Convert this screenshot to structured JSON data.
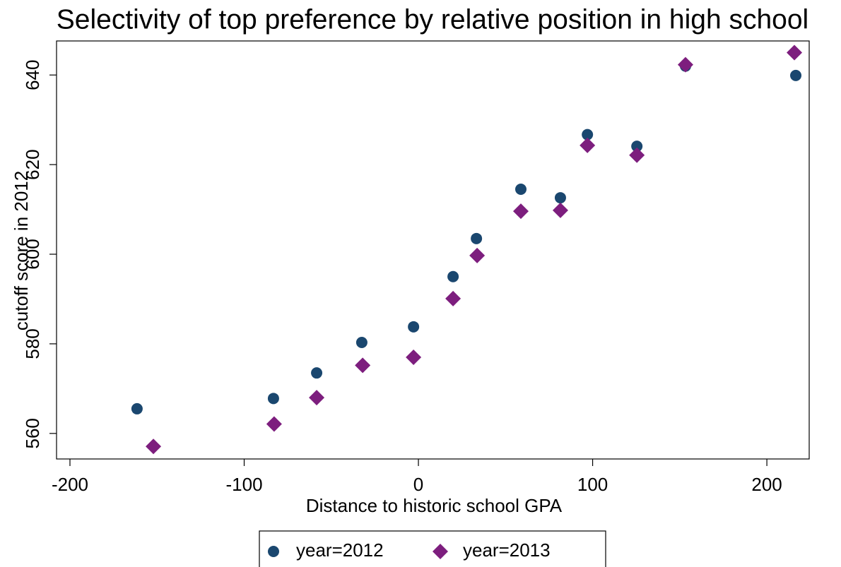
{
  "chart_data": {
    "type": "scatter",
    "title": "Selectivity of top preference by relative position in high school",
    "x_label": "Distance to historic school GPA",
    "y_label": "cutoff score in 2012",
    "xlim": [
      -207.7,
      224.3
    ],
    "ylim": [
      554.3,
      647.6
    ],
    "xticks": [
      -200,
      -100,
      0,
      100,
      200
    ],
    "yticks": [
      560,
      580,
      600,
      620,
      640
    ],
    "legend": "bottom",
    "series": [
      {
        "name": "year=2012",
        "color": "#1a476f",
        "marker": "circle",
        "x": [
          -161.5,
          -83.2,
          -58.4,
          -32.5,
          -2.8,
          19.9,
          33.3,
          58.8,
          81.5,
          97.0,
          125.4,
          153.3,
          216.6
        ],
        "values": [
          565.5,
          567.8,
          573.5,
          580.3,
          583.8,
          595.0,
          603.5,
          614.5,
          612.6,
          626.7,
          624.1,
          642.0,
          639.9
        ]
      },
      {
        "name": "year=2013",
        "color": "#7d1e7e",
        "marker": "diamond",
        "x": [
          -152.1,
          -82.8,
          -58.4,
          -32.0,
          -2.8,
          19.9,
          33.7,
          58.8,
          81.5,
          97.0,
          125.4,
          153.3,
          215.8
        ],
        "values": [
          557.1,
          562.1,
          568.0,
          575.2,
          577.0,
          590.1,
          599.7,
          609.6,
          609.8,
          624.3,
          622.1,
          642.3,
          645.0
        ]
      }
    ]
  }
}
